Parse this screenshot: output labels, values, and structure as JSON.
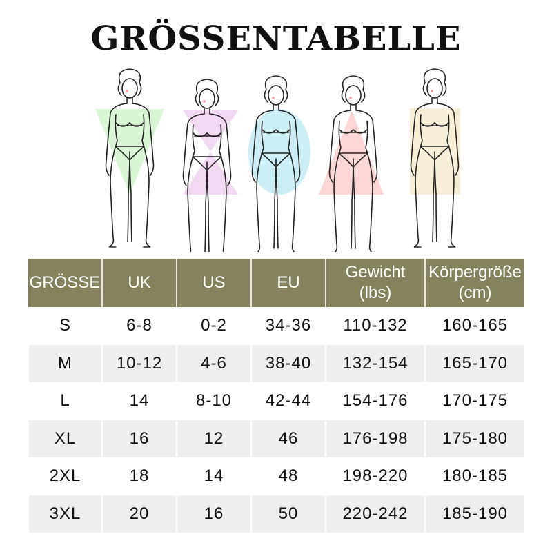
{
  "title": "GRÖSSENTABELLE",
  "figures": [
    {
      "shape": "inverted-triangle-icon",
      "color": "#d9f5d6"
    },
    {
      "shape": "hourglass-icon",
      "color": "#f1d9f1"
    },
    {
      "shape": "oval-icon",
      "color": "#cdeef5"
    },
    {
      "shape": "triangle-icon",
      "color": "#fbd6d6"
    },
    {
      "shape": "rectangle-icon",
      "color": "#f8efd8"
    }
  ],
  "header_color": "#85835f",
  "table": {
    "headers": [
      {
        "l1": "GRÖSSE",
        "l2": ""
      },
      {
        "l1": "UK",
        "l2": ""
      },
      {
        "l1": "US",
        "l2": ""
      },
      {
        "l1": "EU",
        "l2": ""
      },
      {
        "l1": "Gewicht",
        "l2": "(lbs)"
      },
      {
        "l1": "Körpergröße",
        "l2": "(cm)"
      }
    ],
    "rows": [
      [
        "S",
        "6-8",
        "0-2",
        "34-36",
        "110-132",
        "160-165"
      ],
      [
        "M",
        "10-12",
        "4-6",
        "38-40",
        "132-154",
        "165-170"
      ],
      [
        "L",
        "14",
        "8-10",
        "42-44",
        "154-176",
        "170-175"
      ],
      [
        "XL",
        "16",
        "12",
        "46",
        "176-198",
        "175-180"
      ],
      [
        "2XL",
        "18",
        "14",
        "48",
        "198-220",
        "180-185"
      ],
      [
        "3XL",
        "20",
        "16",
        "50",
        "220-242",
        "185-190"
      ]
    ]
  }
}
